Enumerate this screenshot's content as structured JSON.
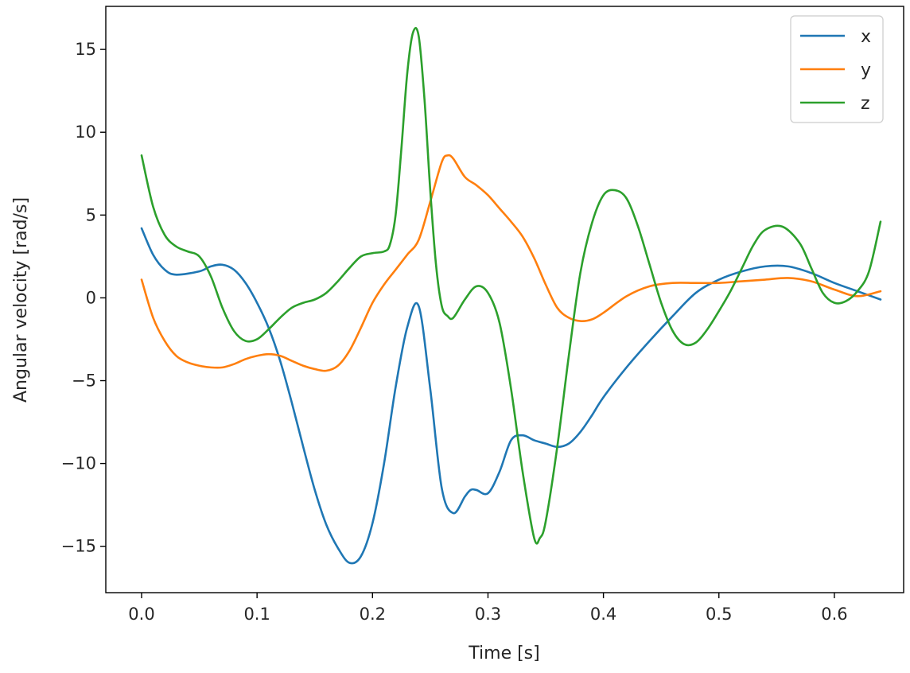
{
  "chart_data": {
    "type": "line",
    "title": "",
    "xlabel": "Time [s]",
    "ylabel": "Angular velocity [rad/s]",
    "xlim": [
      -0.031,
      0.66
    ],
    "ylim": [
      -17.8,
      17.6
    ],
    "xticks": [
      0.0,
      0.1,
      0.2,
      0.3,
      0.4,
      0.5,
      0.6
    ],
    "xtick_labels": [
      "0.0",
      "0.1",
      "0.2",
      "0.3",
      "0.4",
      "0.5",
      "0.6"
    ],
    "yticks": [
      15,
      10,
      5,
      0,
      -5,
      -10,
      -15
    ],
    "ytick_labels": [
      "15",
      "10",
      "5",
      "0",
      "−5",
      "−10",
      "−15"
    ],
    "grid": false,
    "legend_position": "top-right",
    "series": [
      {
        "name": "x",
        "color": "#1f77b4",
        "x": [
          0.0,
          0.01,
          0.02,
          0.03,
          0.05,
          0.06,
          0.07,
          0.08,
          0.09,
          0.1,
          0.11,
          0.12,
          0.13,
          0.14,
          0.15,
          0.16,
          0.17,
          0.18,
          0.19,
          0.2,
          0.21,
          0.22,
          0.23,
          0.24,
          0.25,
          0.26,
          0.27,
          0.28,
          0.285,
          0.29,
          0.3,
          0.31,
          0.32,
          0.33,
          0.34,
          0.35,
          0.36,
          0.37,
          0.38,
          0.39,
          0.4,
          0.42,
          0.44,
          0.46,
          0.48,
          0.5,
          0.52,
          0.54,
          0.56,
          0.58,
          0.6,
          0.62,
          0.64
        ],
        "y": [
          4.2,
          2.6,
          1.7,
          1.4,
          1.6,
          1.9,
          2.0,
          1.7,
          0.9,
          -0.3,
          -1.8,
          -3.8,
          -6.3,
          -9.0,
          -11.6,
          -13.7,
          -15.1,
          -16.0,
          -15.6,
          -13.6,
          -10.0,
          -5.4,
          -1.8,
          -0.5,
          -5.5,
          -11.5,
          -13.0,
          -12.0,
          -11.6,
          -11.6,
          -11.8,
          -10.5,
          -8.6,
          -8.3,
          -8.6,
          -8.8,
          -9.0,
          -8.8,
          -8.1,
          -7.1,
          -6.0,
          -4.2,
          -2.6,
          -1.1,
          0.3,
          1.1,
          1.6,
          1.9,
          1.9,
          1.5,
          0.9,
          0.4,
          -0.1
        ]
      },
      {
        "name": "y",
        "color": "#ff7f0e",
        "x": [
          0.0,
          0.01,
          0.02,
          0.03,
          0.04,
          0.05,
          0.06,
          0.07,
          0.08,
          0.09,
          0.1,
          0.11,
          0.12,
          0.13,
          0.14,
          0.15,
          0.16,
          0.17,
          0.18,
          0.19,
          0.2,
          0.21,
          0.22,
          0.23,
          0.24,
          0.25,
          0.26,
          0.265,
          0.27,
          0.28,
          0.29,
          0.3,
          0.31,
          0.32,
          0.33,
          0.34,
          0.35,
          0.36,
          0.37,
          0.38,
          0.39,
          0.4,
          0.42,
          0.44,
          0.46,
          0.48,
          0.5,
          0.52,
          0.54,
          0.56,
          0.58,
          0.6,
          0.62,
          0.64
        ],
        "y": [
          1.1,
          -1.2,
          -2.6,
          -3.5,
          -3.9,
          -4.1,
          -4.2,
          -4.2,
          -4.0,
          -3.7,
          -3.5,
          -3.4,
          -3.5,
          -3.8,
          -4.1,
          -4.3,
          -4.4,
          -4.1,
          -3.2,
          -1.8,
          -0.3,
          0.8,
          1.7,
          2.6,
          3.5,
          5.8,
          8.2,
          8.6,
          8.4,
          7.3,
          6.8,
          6.2,
          5.4,
          4.6,
          3.7,
          2.4,
          0.8,
          -0.6,
          -1.2,
          -1.4,
          -1.3,
          -0.9,
          0.1,
          0.7,
          0.9,
          0.9,
          0.9,
          1.0,
          1.1,
          1.2,
          1.0,
          0.5,
          0.1,
          0.4
        ]
      },
      {
        "name": "z",
        "color": "#2ca02c",
        "x": [
          0.0,
          0.01,
          0.02,
          0.03,
          0.04,
          0.05,
          0.06,
          0.07,
          0.08,
          0.09,
          0.1,
          0.11,
          0.12,
          0.13,
          0.14,
          0.15,
          0.16,
          0.17,
          0.18,
          0.19,
          0.2,
          0.21,
          0.215,
          0.22,
          0.225,
          0.23,
          0.235,
          0.24,
          0.245,
          0.25,
          0.255,
          0.26,
          0.265,
          0.27,
          0.28,
          0.29,
          0.3,
          0.31,
          0.32,
          0.33,
          0.34,
          0.345,
          0.35,
          0.36,
          0.37,
          0.38,
          0.39,
          0.4,
          0.41,
          0.42,
          0.43,
          0.44,
          0.45,
          0.46,
          0.47,
          0.48,
          0.49,
          0.5,
          0.51,
          0.52,
          0.53,
          0.54,
          0.555,
          0.57,
          0.58,
          0.59,
          0.6,
          0.61,
          0.62,
          0.63,
          0.64
        ],
        "y": [
          8.6,
          5.5,
          3.8,
          3.1,
          2.8,
          2.5,
          1.3,
          -0.6,
          -2.0,
          -2.6,
          -2.5,
          -1.9,
          -1.2,
          -0.6,
          -0.3,
          -0.1,
          0.3,
          1.0,
          1.8,
          2.5,
          2.7,
          2.8,
          3.2,
          5.0,
          9.0,
          13.5,
          16.0,
          15.8,
          12.0,
          6.5,
          2.0,
          -0.5,
          -1.1,
          -1.2,
          -0.1,
          0.7,
          0.3,
          -1.5,
          -5.5,
          -10.5,
          -14.5,
          -14.5,
          -13.5,
          -9.0,
          -3.5,
          1.5,
          4.5,
          6.2,
          6.5,
          6.0,
          4.3,
          2.0,
          -0.3,
          -2.0,
          -2.8,
          -2.7,
          -1.9,
          -0.8,
          0.4,
          1.8,
          3.2,
          4.1,
          4.3,
          3.3,
          1.8,
          0.3,
          -0.3,
          -0.2,
          0.4,
          1.6,
          4.6
        ]
      }
    ]
  }
}
